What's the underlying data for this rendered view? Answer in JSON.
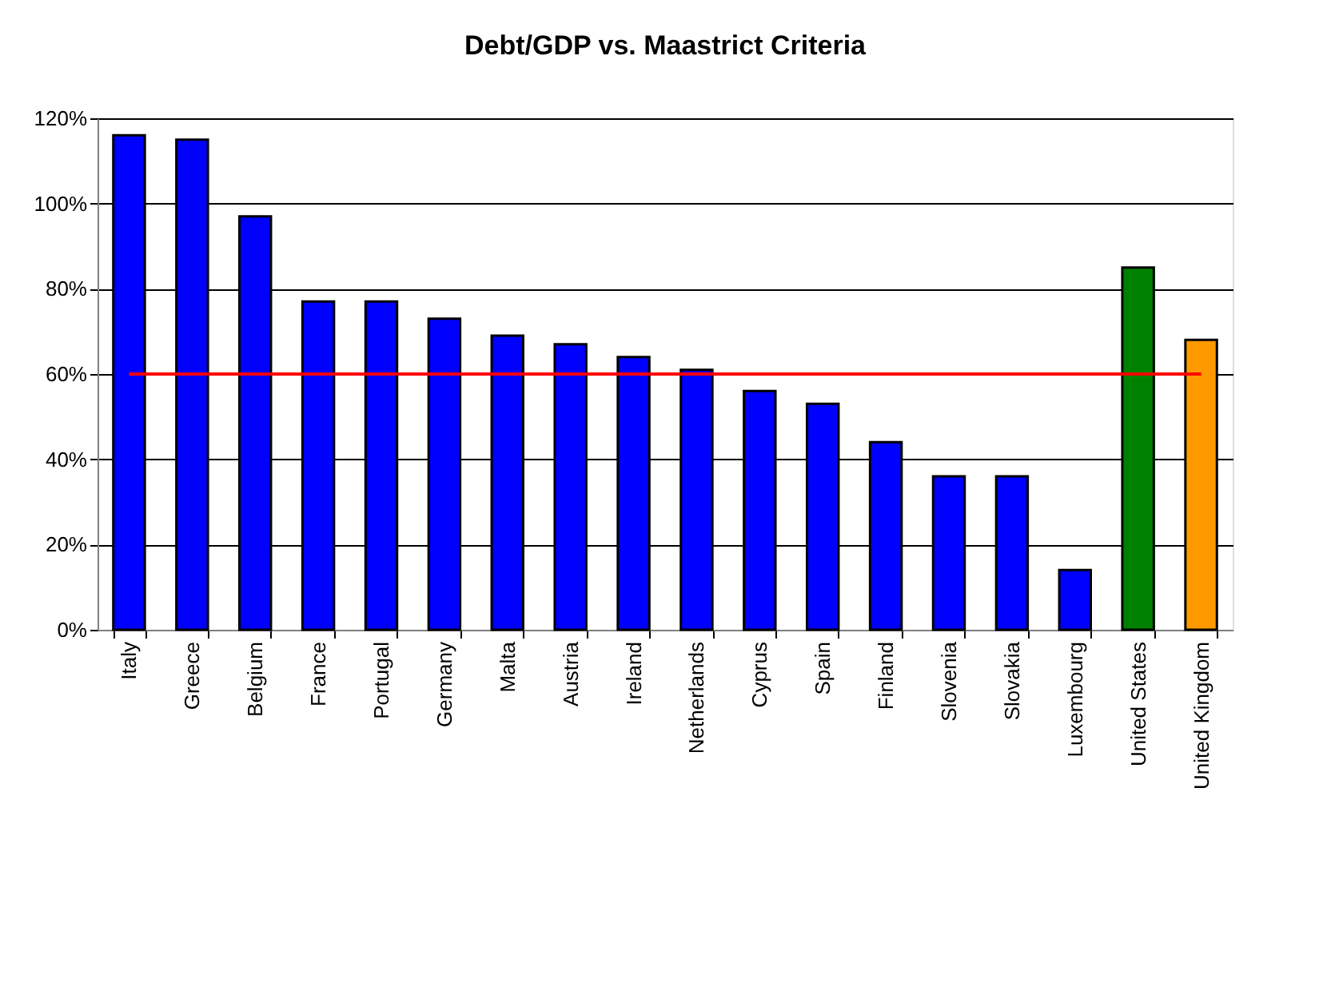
{
  "chart_data": {
    "type": "bar",
    "title": "Debt/GDP vs. Maastrict Criteria",
    "categories": [
      "Italy",
      "Greece",
      "Belgium",
      "France",
      "Portugal",
      "Germany",
      "Malta",
      "Austria",
      "Ireland",
      "Netherlands",
      "Cyprus",
      "Spain",
      "Finland",
      "Slovenia",
      "Slovakia",
      "Luxembourg",
      "United States",
      "United Kingdom"
    ],
    "values": [
      116,
      115,
      97,
      77,
      77,
      73,
      69,
      67,
      64,
      61,
      56,
      53,
      44,
      36,
      36,
      14,
      85,
      68
    ],
    "colors": [
      "#0000ff",
      "#0000ff",
      "#0000ff",
      "#0000ff",
      "#0000ff",
      "#0000ff",
      "#0000ff",
      "#0000ff",
      "#0000ff",
      "#0000ff",
      "#0000ff",
      "#0000ff",
      "#0000ff",
      "#0000ff",
      "#0000ff",
      "#0000ff",
      "#008000",
      "#ff9900"
    ],
    "ylim": [
      0,
      120
    ],
    "yticks": [
      {
        "value": 0,
        "label": "0%"
      },
      {
        "value": 20,
        "label": "20%"
      },
      {
        "value": 40,
        "label": "40%"
      },
      {
        "value": 60,
        "label": "60%"
      },
      {
        "value": 80,
        "label": "80%"
      },
      {
        "value": 100,
        "label": "100%"
      },
      {
        "value": 120,
        "label": "120%"
      }
    ],
    "grid": "y",
    "ref_lines": [
      {
        "axis": "y",
        "value": 60,
        "color": "#ff0000",
        "line_style": "solid"
      }
    ]
  }
}
